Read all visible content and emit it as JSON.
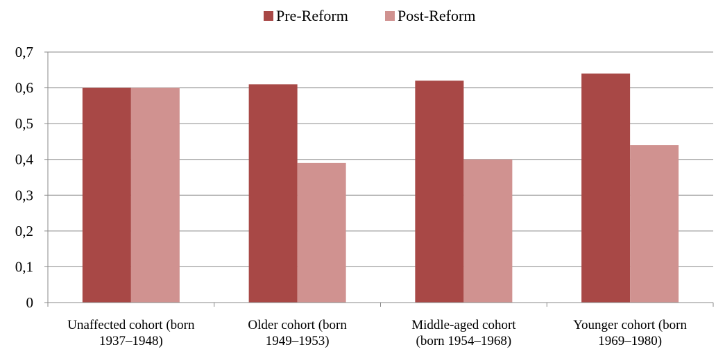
{
  "chart_data": {
    "type": "bar",
    "title": "",
    "xlabel": "",
    "ylabel": "",
    "categories": [
      [
        "Unaffected cohort (born",
        "1937–1948)"
      ],
      [
        "Older cohort (born",
        "1949–1953)"
      ],
      [
        "Middle-aged cohort",
        "(born 1954–1968)"
      ],
      [
        "Younger cohort (born",
        "1969–1980)"
      ]
    ],
    "series": [
      {
        "name": "Pre-Reform",
        "color": "#A84846",
        "values": [
          0.6,
          0.61,
          0.62,
          0.64
        ]
      },
      {
        "name": "Post-Reform",
        "color": "#D09290",
        "values": [
          0.6,
          0.39,
          0.4,
          0.44
        ]
      }
    ],
    "ylim": [
      0,
      0.7
    ],
    "yticks": [
      "0",
      "0,1",
      "0,2",
      "0,3",
      "0,4",
      "0,5",
      "0,6",
      "0,7"
    ],
    "grid": true,
    "legend_position": "top-center"
  }
}
